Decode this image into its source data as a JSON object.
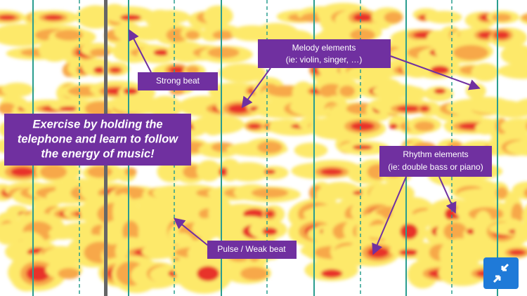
{
  "labels": {
    "strong_beat": "Strong beat",
    "melody": [
      "Melody elements",
      "(ie: violin, singer, …)"
    ],
    "callout": [
      "Exercise by holding the",
      "telephone and learn to follow",
      "the energy of music!"
    ],
    "rhythm": [
      "Rhythm elements",
      "(ie: double bass or piano)"
    ],
    "pulse": "Pulse / Weak beat"
  }
}
